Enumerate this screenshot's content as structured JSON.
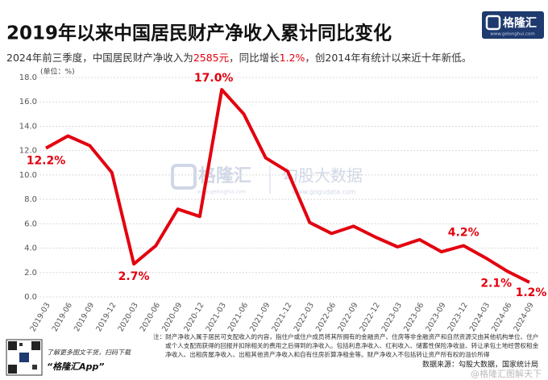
{
  "chart_data": {
    "type": "line",
    "title": "2019年以来中国居民财产净收入累计同比变化",
    "subtitle": [
      "2024年前三季度，中国居民财产净收入为",
      "2585元",
      "，同比增长",
      "1.2%",
      "，创2014年有统计以来近十年新低。"
    ],
    "unit_label": "(单位：%)",
    "categories": [
      "2019-03",
      "2019-06",
      "2019-09",
      "2019-12",
      "2020-03",
      "2020-06",
      "2020-09",
      "2020-12",
      "2021-03",
      "2021-06",
      "2021-09",
      "2021-12",
      "2022-03",
      "2022-06",
      "2022-09",
      "2022-12",
      "2023-03",
      "2023-06",
      "2023-09",
      "2023-12",
      "2024-03",
      "2024-06",
      "2024-09"
    ],
    "values": [
      12.2,
      13.2,
      12.4,
      10.2,
      2.7,
      4.2,
      7.2,
      6.6,
      17.0,
      15.0,
      11.4,
      10.3,
      6.1,
      5.2,
      5.8,
      4.9,
      4.1,
      4.7,
      3.7,
      4.2,
      3.2,
      2.1,
      1.2
    ],
    "value_labels": [
      "12.2%",
      null,
      null,
      null,
      "2.7%",
      null,
      null,
      null,
      "17.0%",
      null,
      null,
      null,
      null,
      null,
      null,
      null,
      null,
      null,
      null,
      "4.2%",
      null,
      "2.1%",
      "1.2%"
    ],
    "color": "#e3000f",
    "ylim": [
      0,
      18
    ],
    "yticks": [
      {
        "value": 0,
        "label": "0.0"
      },
      {
        "value": 2,
        "label": "2.0"
      },
      {
        "value": 4,
        "label": "4.0"
      },
      {
        "value": 6,
        "label": "6.0"
      },
      {
        "value": 8,
        "label": "8.0"
      },
      {
        "value": 10,
        "label": "10.0"
      },
      {
        "value": 12,
        "label": "12.0"
      },
      {
        "value": 14,
        "label": "14.0"
      },
      {
        "value": 16,
        "label": "16.0"
      },
      {
        "value": 18,
        "label": "18.0"
      }
    ],
    "grid": true
  },
  "logo": {
    "name": "格隆汇",
    "url": "www.gelonghui.com"
  },
  "watermark": {
    "brand": "格隆汇",
    "brand_url": "www.gelonghui.com",
    "data_brand": "勾股大数据",
    "data_url": "www.gogudata.com",
    "weibo": "@格隆汇图解天下"
  },
  "footnote": [
    "注：财产净收入属于居民可支配收入的内容，指住户或住户成员将其所拥有的金融资产、住房等非金融资产和自然资源交由其他机构单位、住户",
    "或个人支配而获得的回报并扣除相关的费用之后得到的净收入。包括利息净收入、红利收入、储蓄性保险净收益、转让承包土地经营权租金",
    "净收入、出租房屋净收入、出租其他资产净收入和自有住房折算净租金等。财产净收入不包括转让资产所有权的溢价所得"
  ],
  "source": "数据来源：勾股大数据，国家统计局",
  "app_promo": {
    "text": "了解更多图文干货，扫码下载",
    "name": "“格隆汇App”"
  }
}
